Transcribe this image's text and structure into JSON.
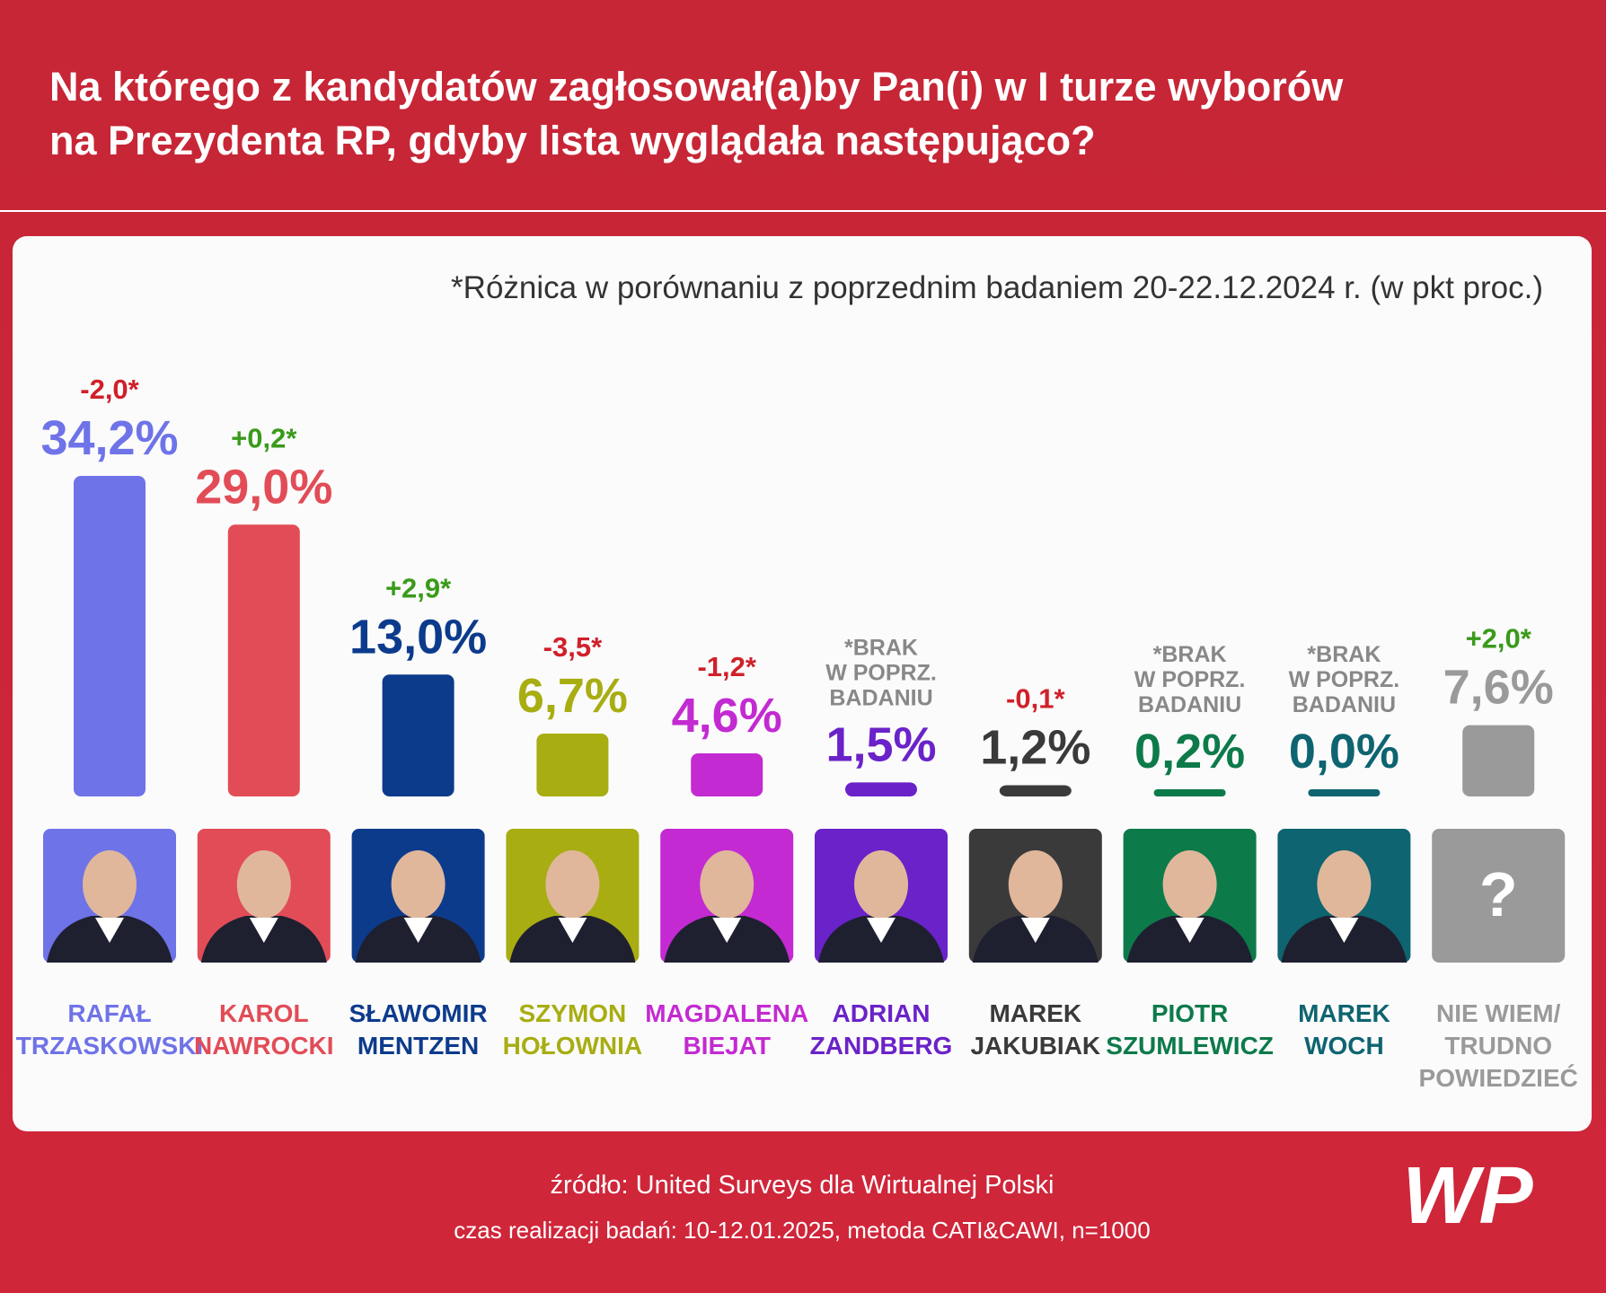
{
  "chart_data": {
    "type": "bar",
    "title": "Na którego z kandydatów zagłosował(a)by Pan(i) w I turze wyborów\nna Prezydenta RP, gdyby lista wyglądała następująco?",
    "note": "*Różnica w porównaniu z poprzednim badaniem 20-22.12.2024 r. (w pkt proc.)",
    "categories": [
      "RAFAŁ\nTRZASKOWSKI",
      "KAROL\nNAWROCKI",
      "SŁAWOMIR\nMENTZEN",
      "SZYMON\nHOŁOWNIA",
      "MAGDALENA\nBIEJAT",
      "ADRIAN\nZANDBERG",
      "MAREK\nJAKUBIAK",
      "PIOTR\nSZUMLEWICZ",
      "MAREK\nWOCH",
      "NIE WIEM/\nTRUDNO\nPOWIEDZIEĆ"
    ],
    "values": [
      34.2,
      29.0,
      13.0,
      6.7,
      4.6,
      1.5,
      1.2,
      0.2,
      0.0,
      7.6
    ],
    "value_labels": [
      "34,2%",
      "29,0%",
      "13,0%",
      "6,7%",
      "4,6%",
      "1,5%",
      "1,2%",
      "0,2%",
      "0,0%",
      "7,6%"
    ],
    "colors": [
      "#6f73e8",
      "#e24c57",
      "#0d3b8c",
      "#a8ad12",
      "#c32ad1",
      "#6a22c9",
      "#3a3a3a",
      "#0d7a4a",
      "#0e6470",
      "#9a9a9a"
    ],
    "changes": [
      "-2,0*",
      "+0,2*",
      "+2,9*",
      "-3,5*",
      "-1,2*",
      "*BRAK\nW POPRZ.\nBADANIU",
      "-0,1*",
      "*BRAK\nW POPRZ.\nBADANIU",
      "*BRAK\nW POPRZ.\nBADANIU",
      "+2,0*"
    ],
    "change_colors": [
      "#d0202a",
      "#3a9a1a",
      "#3a9a1a",
      "#d0202a",
      "#d0202a",
      "#888888",
      "#d0202a",
      "#888888",
      "#888888",
      "#3a9a1a"
    ],
    "unknown_photo": "?",
    "source": "źródło: United Surveys dla Wirtualnej Polski",
    "details": "czas realizacji badań: 10-12.01.2025, metoda CATI&CAWI, n=1000",
    "logo": "WP"
  }
}
